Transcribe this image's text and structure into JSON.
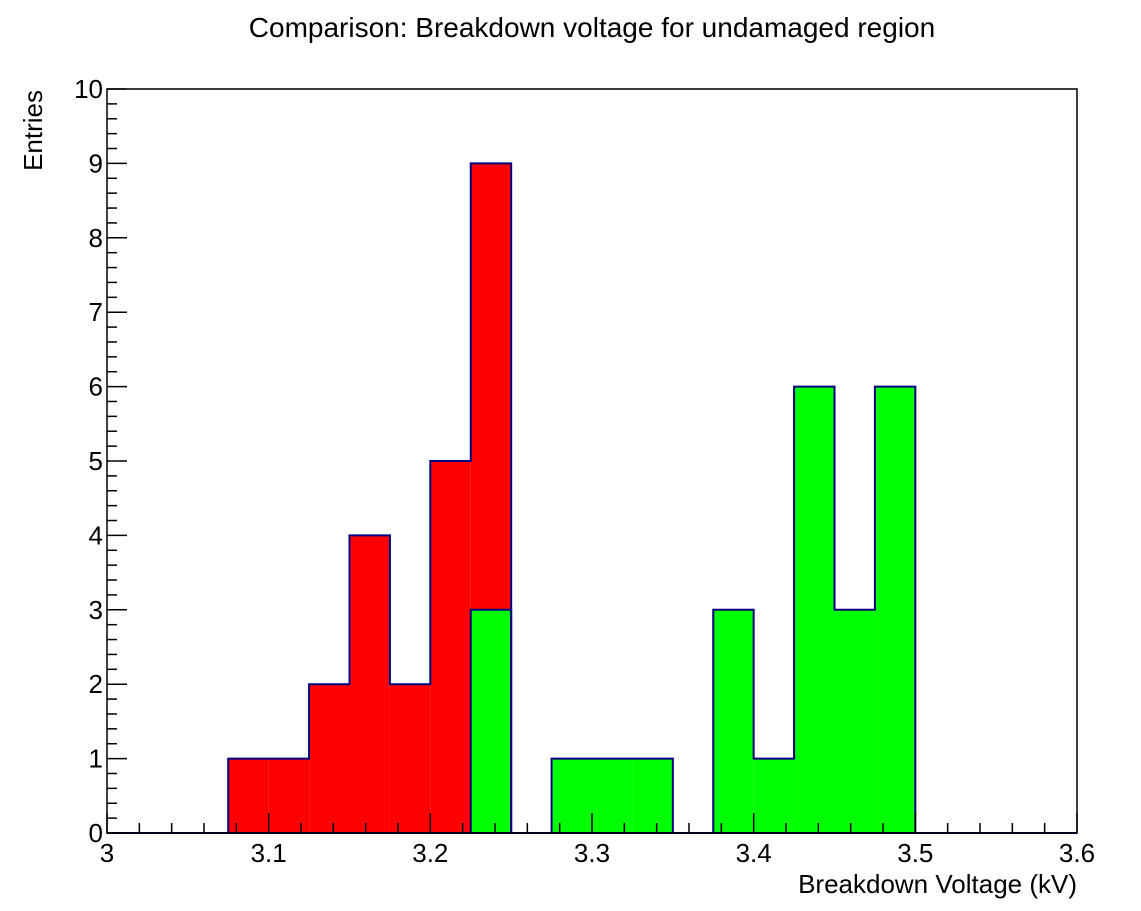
{
  "chart_data": {
    "type": "bar",
    "title": "Comparison: Breakdown voltage for undamaged region",
    "xlabel": "Breakdown Voltage (kV)",
    "ylabel": "Entries",
    "xlim": [
      3.0,
      3.6
    ],
    "ylim": [
      0,
      10
    ],
    "x_ticks": [
      "3",
      "3.1",
      "3.2",
      "3.3",
      "3.4",
      "3.5",
      "3.6"
    ],
    "y_ticks": [
      "0",
      "1",
      "2",
      "3",
      "4",
      "5",
      "6",
      "7",
      "8",
      "9",
      "10"
    ],
    "bin_width": 0.025,
    "series": [
      {
        "color": "#ff0000",
        "bins": [
          {
            "x0": 3.075,
            "x1": 3.1,
            "value": 1
          },
          {
            "x0": 3.1,
            "x1": 3.125,
            "value": 1
          },
          {
            "x0": 3.125,
            "x1": 3.15,
            "value": 2
          },
          {
            "x0": 3.15,
            "x1": 3.175,
            "value": 4
          },
          {
            "x0": 3.175,
            "x1": 3.2,
            "value": 2
          },
          {
            "x0": 3.2,
            "x1": 3.225,
            "value": 5
          },
          {
            "x0": 3.225,
            "x1": 3.25,
            "value": 9
          }
        ]
      },
      {
        "color": "#00ff00",
        "bins": [
          {
            "x0": 3.225,
            "x1": 3.25,
            "value": 3
          },
          {
            "x0": 3.275,
            "x1": 3.3,
            "value": 1
          },
          {
            "x0": 3.3,
            "x1": 3.325,
            "value": 1
          },
          {
            "x0": 3.325,
            "x1": 3.35,
            "value": 1
          },
          {
            "x0": 3.375,
            "x1": 3.4,
            "value": 3
          },
          {
            "x0": 3.4,
            "x1": 3.425,
            "value": 1
          },
          {
            "x0": 3.425,
            "x1": 3.45,
            "value": 6
          },
          {
            "x0": 3.45,
            "x1": 3.475,
            "value": 3
          },
          {
            "x0": 3.475,
            "x1": 3.5,
            "value": 6
          }
        ]
      }
    ],
    "outline_color": "#000080",
    "grid": false
  }
}
